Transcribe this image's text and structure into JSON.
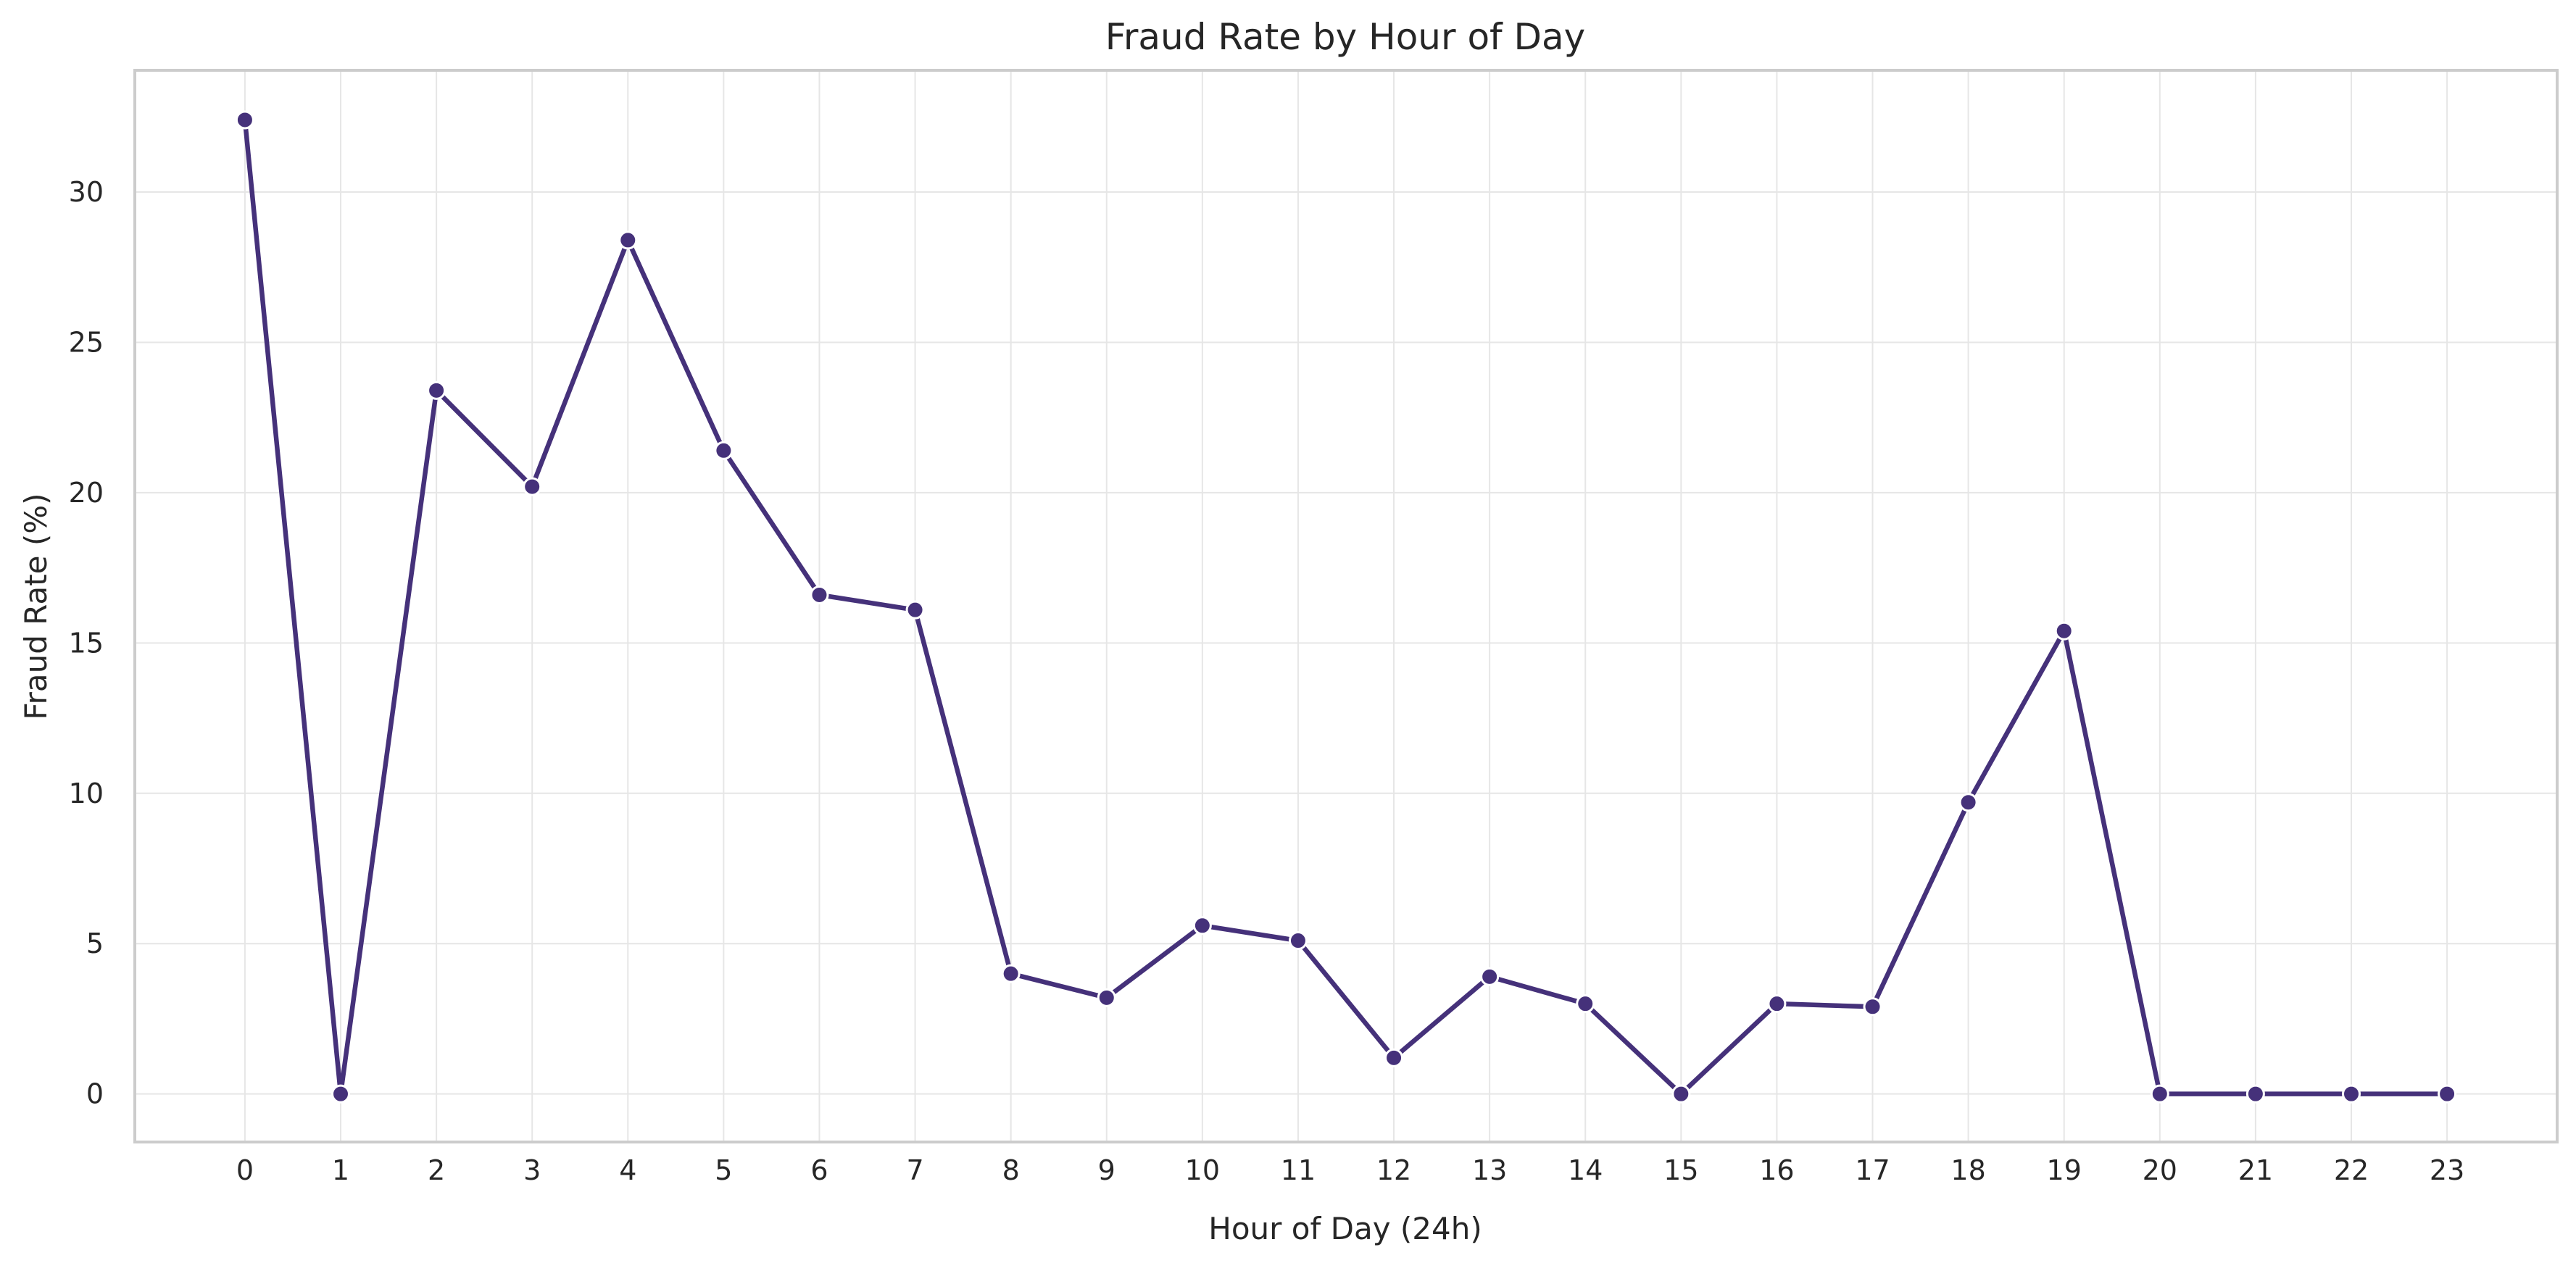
{
  "chart_data": {
    "type": "line",
    "title": "Fraud Rate by Hour of Day",
    "xlabel": "Hour of Day (24h)",
    "ylabel": "Fraud Rate (%)",
    "x": [
      0,
      1,
      2,
      3,
      4,
      5,
      6,
      7,
      8,
      9,
      10,
      11,
      12,
      13,
      14,
      15,
      16,
      17,
      18,
      19,
      20,
      21,
      22,
      23
    ],
    "x_ticks": [
      "0",
      "1",
      "2",
      "3",
      "4",
      "5",
      "6",
      "7",
      "8",
      "9",
      "10",
      "11",
      "12",
      "13",
      "14",
      "15",
      "16",
      "17",
      "18",
      "19",
      "20",
      "21",
      "22",
      "23"
    ],
    "y_ticks": [
      0,
      5,
      10,
      15,
      20,
      25,
      30
    ],
    "xlim": [
      -1.15,
      24.15
    ],
    "ylim": [
      -1.6,
      34.05
    ],
    "grid": true,
    "marker": "circle",
    "series": [
      {
        "color": "#45317a",
        "values": [
          32.4,
          0.0,
          23.4,
          20.2,
          28.4,
          21.4,
          16.6,
          16.1,
          4.0,
          3.2,
          5.6,
          5.1,
          1.2,
          3.9,
          3.0,
          0.0,
          3.0,
          2.9,
          9.7,
          15.4,
          0.0,
          0.0,
          0.0,
          0.0
        ]
      }
    ]
  }
}
